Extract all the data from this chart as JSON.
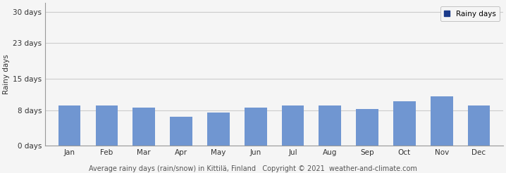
{
  "months": [
    "Jan",
    "Feb",
    "Mar",
    "Apr",
    "May",
    "Jun",
    "Jul",
    "Aug",
    "Sep",
    "Oct",
    "Nov",
    "Dec"
  ],
  "values": [
    9.0,
    9.0,
    8.5,
    6.5,
    7.5,
    8.5,
    9.0,
    9.0,
    8.3,
    10.0,
    11.0,
    9.0
  ],
  "bar_color": "#7096d1",
  "ylabel": "Rainy days",
  "yticks": [
    0,
    8,
    15,
    23,
    30
  ],
  "ytick_labels": [
    "0 days",
    "8 days",
    "15 days",
    "23 days",
    "30 days"
  ],
  "ylim": [
    0,
    32
  ],
  "legend_label": "Rainy days",
  "legend_color": "#1a3a8a",
  "caption": "Average rainy days (rain/snow) in Kittilä, Finland   Copyright © 2021  weather-and-climate.com",
  "bg_color": "#f5f5f5",
  "plot_bg_color": "#f5f5f5",
  "grid_color": "#cccccc",
  "axis_fontsize": 7.5,
  "caption_fontsize": 7.0
}
